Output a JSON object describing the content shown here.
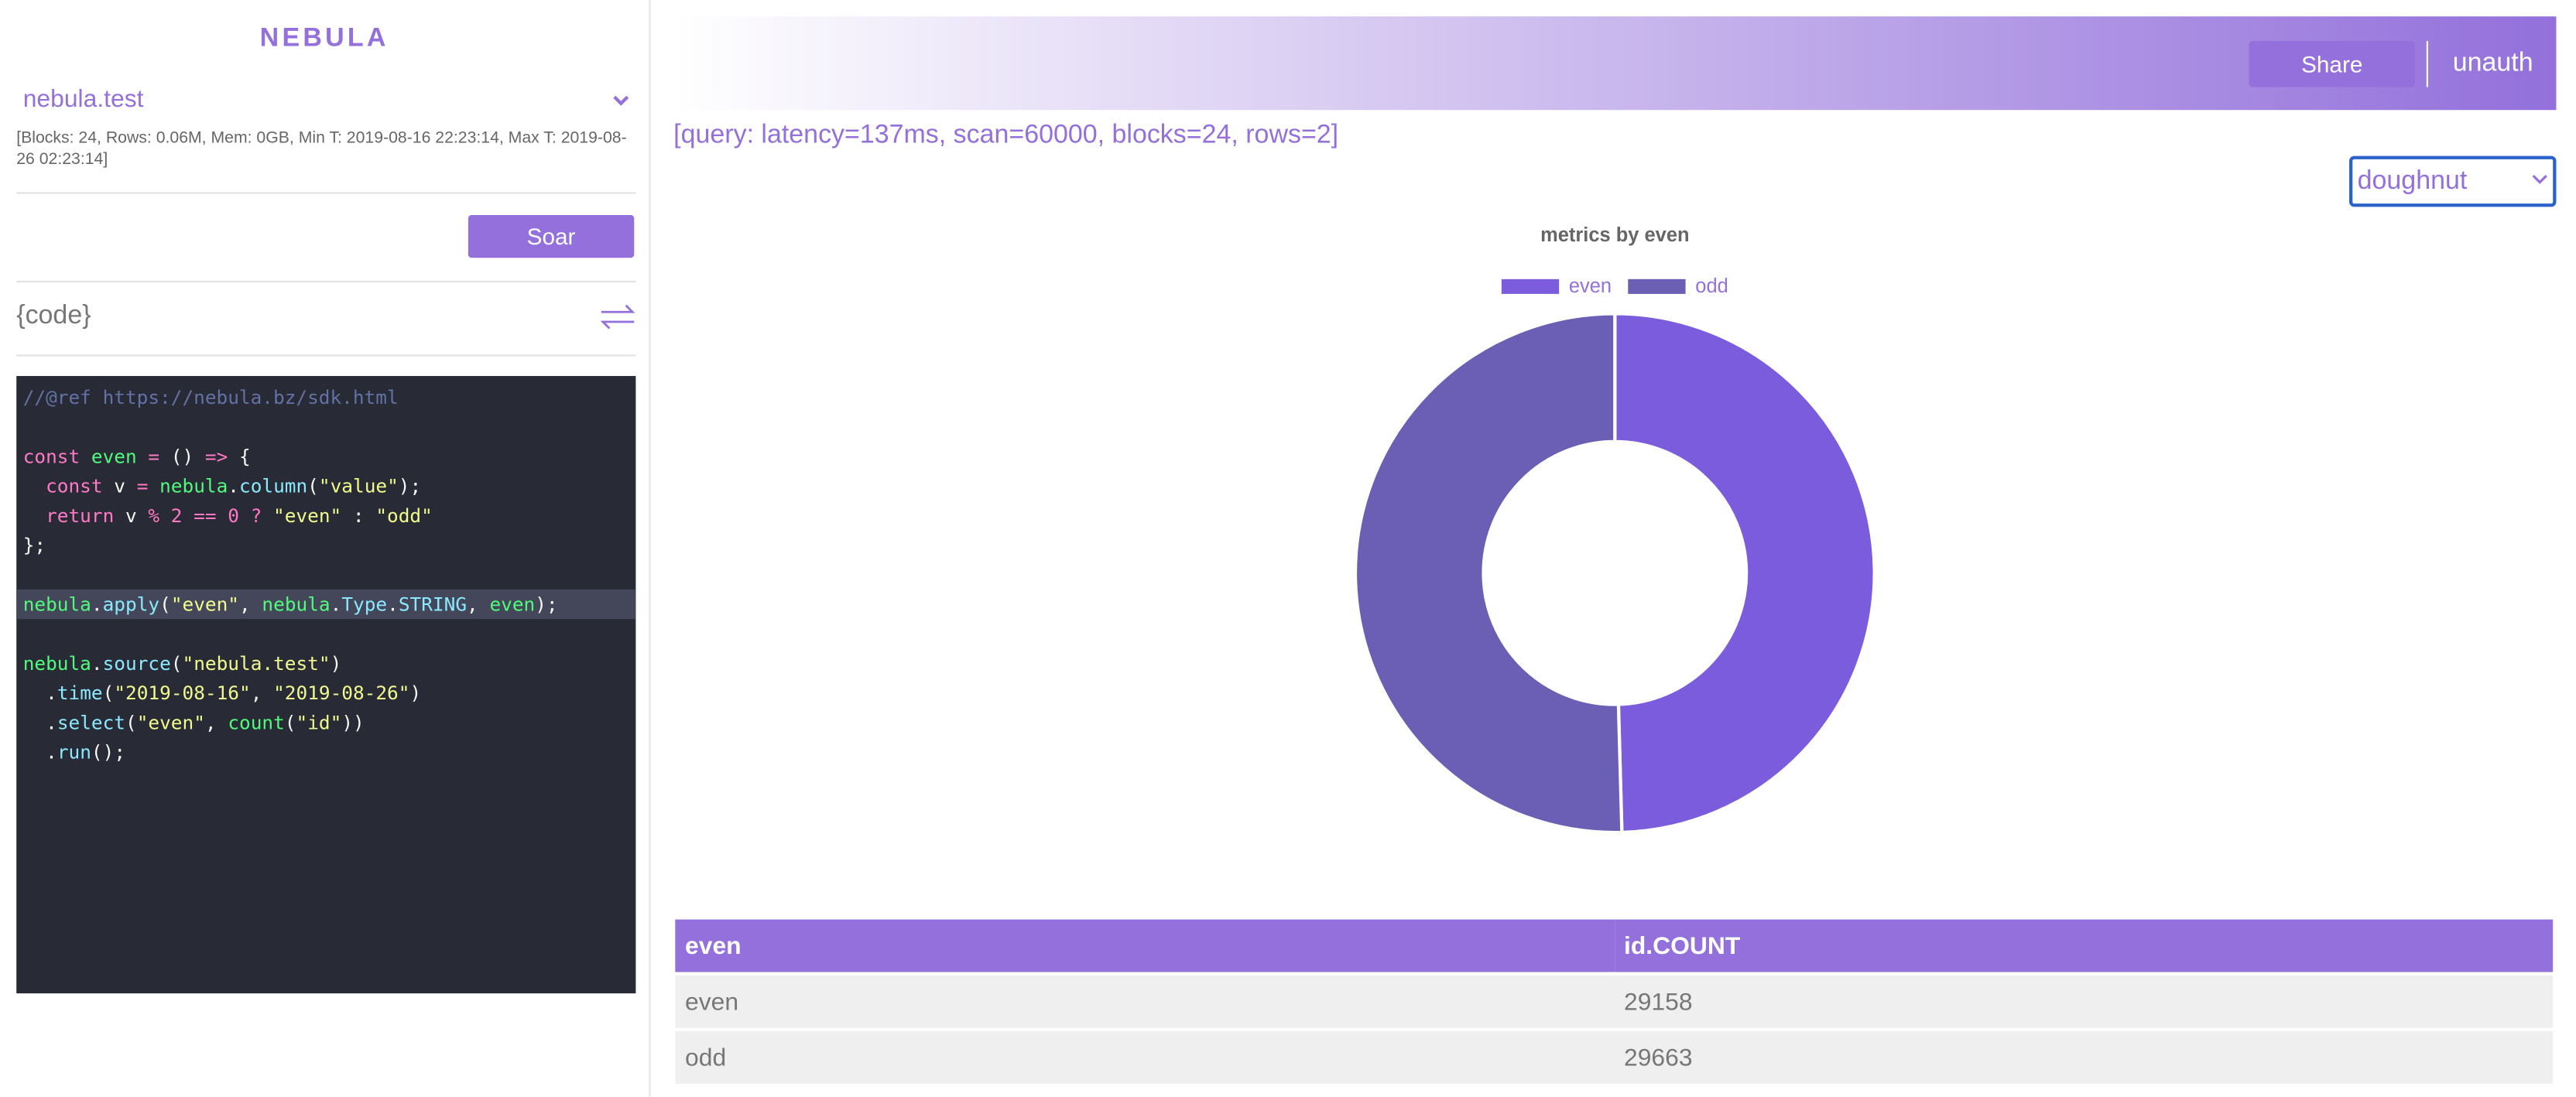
{
  "header": {
    "brand": "NEBULA",
    "share": "Share",
    "user": "unauth"
  },
  "sidebar": {
    "source": "nebula.test",
    "info": "[Blocks: 24, Rows: 0.06M, Mem: 0GB, Min T: 2019-08-16 22:23:14, Max T: 2019-08-26 02:23:14]",
    "soar": "Soar",
    "code_label": "{code}"
  },
  "code": {
    "lines": [
      [
        [
          "//@ref https://nebula.bz/sdk.html",
          "#6272a4"
        ]
      ],
      [],
      [
        [
          "const",
          "#ff79c6"
        ],
        [
          " even ",
          "#50fa7b"
        ],
        [
          "= ",
          "#ff79c6"
        ],
        [
          "() ",
          "#f8f8f2"
        ],
        [
          "=> ",
          "#ff79c6"
        ],
        [
          "{",
          "#f8f8f2"
        ]
      ],
      [
        [
          "  const",
          "#ff79c6"
        ],
        [
          " v ",
          "#f8f8f2"
        ],
        [
          "= ",
          "#ff79c6"
        ],
        [
          "nebula",
          "#50fa7b"
        ],
        [
          ".",
          "#f8f8f2"
        ],
        [
          "column",
          "#8be9fd"
        ],
        [
          "(",
          "#f8f8f2"
        ],
        [
          "\"value\"",
          "#f1fa8c"
        ],
        [
          ");",
          "#f8f8f2"
        ]
      ],
      [
        [
          "  return",
          "#ff79c6"
        ],
        [
          " v ",
          "#f8f8f2"
        ],
        [
          "% 2 == 0 ? ",
          "#ff79c6"
        ],
        [
          "\"even\"",
          "#f1fa8c"
        ],
        [
          " : ",
          "#f8f8f2"
        ],
        [
          "\"odd\"",
          "#f1fa8c"
        ]
      ],
      [
        [
          "};",
          "#f8f8f2"
        ]
      ],
      [],
      [
        [
          "nebula",
          "#50fa7b"
        ],
        [
          ".",
          "#f8f8f2"
        ],
        [
          "apply",
          "#8be9fd"
        ],
        [
          "(",
          "#f8f8f2"
        ],
        [
          "\"even\"",
          "#f1fa8c"
        ],
        [
          ", ",
          "#f8f8f2"
        ],
        [
          "nebula",
          "#50fa7b"
        ],
        [
          ".",
          "#f8f8f2"
        ],
        [
          "Type",
          "#8be9fd"
        ],
        [
          ".",
          "#f8f8f2"
        ],
        [
          "STRING",
          "#8be9fd"
        ],
        [
          ", ",
          "#f8f8f2"
        ],
        [
          "even",
          "#50fa7b"
        ],
        [
          ");",
          "#f8f8f2"
        ]
      ],
      [],
      [
        [
          "nebula",
          "#50fa7b"
        ],
        [
          ".",
          "#f8f8f2"
        ],
        [
          "source",
          "#8be9fd"
        ],
        [
          "(",
          "#f8f8f2"
        ],
        [
          "\"nebula.test\"",
          "#f1fa8c"
        ],
        [
          ")",
          "#f8f8f2"
        ]
      ],
      [
        [
          "  .",
          "#f8f8f2"
        ],
        [
          "time",
          "#8be9fd"
        ],
        [
          "(",
          "#f8f8f2"
        ],
        [
          "\"2019-08-16\"",
          "#f1fa8c"
        ],
        [
          ", ",
          "#f8f8f2"
        ],
        [
          "\"2019-08-26\"",
          "#f1fa8c"
        ],
        [
          ")",
          "#f8f8f2"
        ]
      ],
      [
        [
          "  .",
          "#f8f8f2"
        ],
        [
          "select",
          "#8be9fd"
        ],
        [
          "(",
          "#f8f8f2"
        ],
        [
          "\"even\"",
          "#f1fa8c"
        ],
        [
          ", ",
          "#f8f8f2"
        ],
        [
          "count",
          "#50fa7b"
        ],
        [
          "(",
          "#f8f8f2"
        ],
        [
          "\"id\"",
          "#f1fa8c"
        ],
        [
          "))",
          "#f8f8f2"
        ]
      ],
      [
        [
          "  .",
          "#f8f8f2"
        ],
        [
          "run",
          "#8be9fd"
        ],
        [
          "();",
          "#f8f8f2"
        ]
      ]
    ],
    "highlight": 7
  },
  "query": "[query: latency=137ms, scan=60000, blocks=24, rows=2]",
  "display": "doughnut",
  "chart_data": {
    "type": "doughnut",
    "title": "metrics by even",
    "categories": [
      "even",
      "odd"
    ],
    "values": [
      29158,
      29663
    ],
    "colors": [
      "#7a5cdc",
      "#6b5fb5"
    ]
  },
  "table": {
    "header": [
      "even",
      "id.COUNT"
    ]
  }
}
